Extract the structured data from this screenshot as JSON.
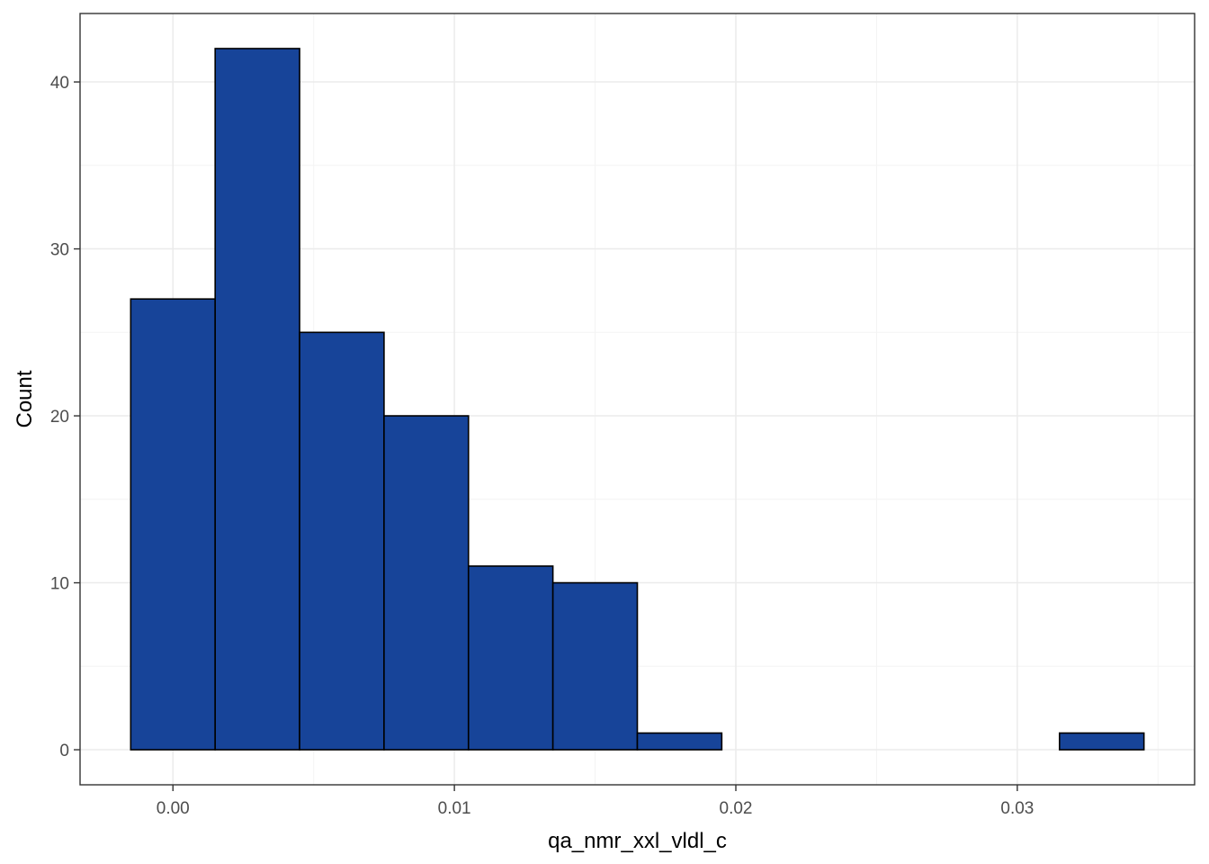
{
  "chart_data": {
    "type": "bar",
    "subtype": "histogram",
    "title": "",
    "xlabel": "qa_nmr_xxl_vldl_c",
    "ylabel": "Count",
    "bin_width": 0.003,
    "bins": [
      {
        "start": -0.0015,
        "end": 0.0015,
        "count": 27
      },
      {
        "start": 0.0015,
        "end": 0.0045,
        "count": 42
      },
      {
        "start": 0.0045,
        "end": 0.0075,
        "count": 25
      },
      {
        "start": 0.0075,
        "end": 0.0105,
        "count": 20
      },
      {
        "start": 0.0105,
        "end": 0.0135,
        "count": 11
      },
      {
        "start": 0.0135,
        "end": 0.0165,
        "count": 10
      },
      {
        "start": 0.0165,
        "end": 0.0195,
        "count": 1
      },
      {
        "start": 0.0195,
        "end": 0.0225,
        "count": 0
      },
      {
        "start": 0.0225,
        "end": 0.0255,
        "count": 0
      },
      {
        "start": 0.0255,
        "end": 0.0285,
        "count": 0
      },
      {
        "start": 0.0285,
        "end": 0.0315,
        "count": 0
      },
      {
        "start": 0.0315,
        "end": 0.0345,
        "count": 1
      }
    ],
    "xlim": [
      -0.0033,
      0.0363
    ],
    "ylim": [
      -2.1,
      44.1
    ],
    "x_ticks": [
      {
        "value": 0.0,
        "label": "0.00"
      },
      {
        "value": 0.01,
        "label": "0.01"
      },
      {
        "value": 0.02,
        "label": "0.02"
      },
      {
        "value": 0.03,
        "label": "0.03"
      }
    ],
    "x_minor_ticks": [
      0.005,
      0.015,
      0.025,
      0.035
    ],
    "y_ticks": [
      {
        "value": 0,
        "label": "0"
      },
      {
        "value": 10,
        "label": "10"
      },
      {
        "value": 20,
        "label": "20"
      },
      {
        "value": 30,
        "label": "30"
      },
      {
        "value": 40,
        "label": "40"
      }
    ],
    "y_minor_ticks": [
      5,
      15,
      25,
      35
    ],
    "grid": true,
    "legend": "none",
    "colors": {
      "bar_fill": "#174499",
      "bar_outline": "#000000",
      "grid_major": "#ebebeb",
      "grid_minor": "#f4f4f4",
      "panel_border": "#333333",
      "tick_text": "#4d4d4d"
    }
  }
}
